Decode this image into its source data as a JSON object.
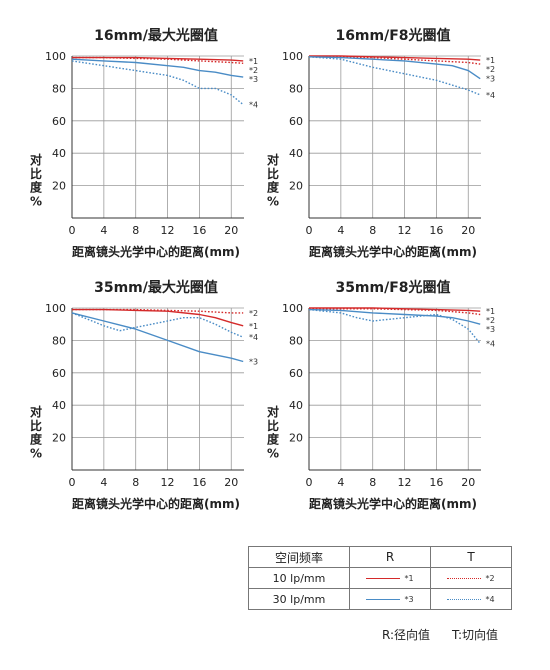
{
  "colors": {
    "R10": "#d42a2a",
    "T10": "#d42a2a",
    "R30": "#4a8cc6",
    "T30": "#4a8cc6",
    "grid": "#9a9a9a"
  },
  "chart_data": [
    {
      "type": "line",
      "title": "16mm/最大光圈值",
      "xlabel": "距离镜头光学中心的距离(mm)",
      "ylabel": "对比度%",
      "xticks": [
        0,
        4,
        8,
        12,
        16,
        20
      ],
      "yticks": [
        20,
        40,
        60,
        80,
        100
      ],
      "xlim": [
        0,
        21.6
      ],
      "ylim": [
        0,
        100
      ],
      "grid": true,
      "series": [
        {
          "name": "*1",
          "style": "R10",
          "x": [
            0,
            4,
            8,
            12,
            16,
            20,
            21.5
          ],
          "y": [
            99,
            99,
            99,
            98.5,
            98,
            97.5,
            97
          ]
        },
        {
          "name": "*2",
          "style": "T10",
          "x": [
            0,
            4,
            8,
            12,
            16,
            20,
            21.5
          ],
          "y": [
            99,
            99,
            98.5,
            98,
            97,
            96,
            95.5
          ]
        },
        {
          "name": "*3",
          "style": "R30",
          "x": [
            0,
            4,
            8,
            12,
            14,
            16,
            18,
            20,
            21.5
          ],
          "y": [
            98,
            97,
            96,
            94,
            93,
            91,
            90,
            88,
            87
          ]
        },
        {
          "name": "*4",
          "style": "T30",
          "x": [
            0,
            4,
            8,
            12,
            14,
            16,
            18,
            20,
            21.5
          ],
          "y": [
            97,
            94,
            91,
            88,
            85,
            80,
            80,
            76,
            70
          ]
        }
      ]
    },
    {
      "type": "line",
      "title": "16mm/F8光圈值",
      "xlabel": "距离镜头光学中心的距离(mm)",
      "ylabel": "对比度%",
      "xticks": [
        0,
        4,
        8,
        12,
        16,
        20
      ],
      "yticks": [
        20,
        40,
        60,
        80,
        100
      ],
      "xlim": [
        0,
        21.6
      ],
      "ylim": [
        0,
        100
      ],
      "grid": true,
      "series": [
        {
          "name": "*1",
          "style": "R10",
          "x": [
            0,
            4,
            8,
            12,
            16,
            20,
            21.5
          ],
          "y": [
            100,
            100,
            99.5,
            99,
            98.5,
            98,
            97.5
          ]
        },
        {
          "name": "*2",
          "style": "T10",
          "x": [
            0,
            4,
            8,
            12,
            16,
            20,
            21.5
          ],
          "y": [
            99.5,
            99.5,
            99,
            98,
            97,
            96,
            95
          ]
        },
        {
          "name": "*3",
          "style": "R30",
          "x": [
            0,
            4,
            8,
            12,
            16,
            18,
            20,
            21.5
          ],
          "y": [
            99.5,
            99,
            98,
            97,
            95,
            94,
            91,
            86
          ]
        },
        {
          "name": "*4",
          "style": "T30",
          "x": [
            0,
            4,
            8,
            12,
            16,
            20,
            21.5
          ],
          "y": [
            99.5,
            98,
            93,
            89,
            85,
            79,
            76
          ]
        }
      ]
    },
    {
      "type": "line",
      "title": "35mm/最大光圈值",
      "xlabel": "距离镜头光学中心的距离(mm)",
      "ylabel": "对比度%",
      "xticks": [
        0,
        4,
        8,
        12,
        16,
        20
      ],
      "yticks": [
        20,
        40,
        60,
        80,
        100
      ],
      "xlim": [
        0,
        21.6
      ],
      "ylim": [
        0,
        100
      ],
      "grid": true,
      "series": [
        {
          "name": "*1",
          "style": "R10",
          "x": [
            0,
            4,
            8,
            12,
            16,
            18,
            20,
            21.5
          ],
          "y": [
            99,
            99,
            98.5,
            98,
            96,
            94,
            91,
            89
          ]
        },
        {
          "name": "*2",
          "style": "T10",
          "x": [
            0,
            4,
            8,
            12,
            16,
            20,
            21.5
          ],
          "y": [
            99,
            99,
            99,
            98.5,
            98,
            97,
            97
          ]
        },
        {
          "name": "*3",
          "style": "R30",
          "x": [
            0,
            4,
            8,
            12,
            16,
            20,
            21.5
          ],
          "y": [
            97,
            92,
            87,
            80,
            73,
            69,
            67
          ]
        },
        {
          "name": "*4",
          "style": "T30",
          "x": [
            0,
            2,
            4,
            6,
            8,
            12,
            14,
            16,
            18,
            20,
            21.5
          ],
          "y": [
            97,
            93,
            89,
            86,
            88,
            92,
            94,
            94,
            90,
            85,
            82
          ]
        }
      ]
    },
    {
      "type": "line",
      "title": "35mm/F8光圈值",
      "xlabel": "距离镜头光学中心的距离(mm)",
      "ylabel": "对比度%",
      "xticks": [
        0,
        4,
        8,
        12,
        16,
        20
      ],
      "yticks": [
        20,
        40,
        60,
        80,
        100
      ],
      "xlim": [
        0,
        21.6
      ],
      "ylim": [
        0,
        100
      ],
      "grid": true,
      "series": [
        {
          "name": "*1",
          "style": "R10",
          "x": [
            0,
            4,
            8,
            12,
            16,
            20,
            21.5
          ],
          "y": [
            100,
            100,
            100,
            99.5,
            99,
            98.5,
            98
          ]
        },
        {
          "name": "*2",
          "style": "T10",
          "x": [
            0,
            4,
            8,
            12,
            16,
            20,
            21.5
          ],
          "y": [
            99.5,
            99.5,
            99.5,
            99,
            98.5,
            97,
            96
          ]
        },
        {
          "name": "*3",
          "style": "R30",
          "x": [
            0,
            4,
            8,
            12,
            16,
            18,
            20,
            21.5
          ],
          "y": [
            99,
            98.5,
            97,
            96,
            95,
            94,
            92,
            90
          ]
        },
        {
          "name": "*4",
          "style": "T30",
          "x": [
            0,
            4,
            6,
            8,
            12,
            16,
            18,
            20,
            21.5
          ],
          "y": [
            99,
            97,
            94,
            92,
            94,
            96,
            93,
            87,
            78
          ]
        }
      ]
    }
  ],
  "legend": {
    "headers": [
      "空间频率",
      "R",
      "T"
    ],
    "rows": [
      {
        "freq": "10 lp/mm",
        "r_tag": "*1",
        "t_tag": "*2"
      },
      {
        "freq": "30 lp/mm",
        "r_tag": "*3",
        "t_tag": "*4"
      }
    ]
  },
  "footnotes": {
    "r": "R:径向值",
    "t": "T:切向值"
  }
}
